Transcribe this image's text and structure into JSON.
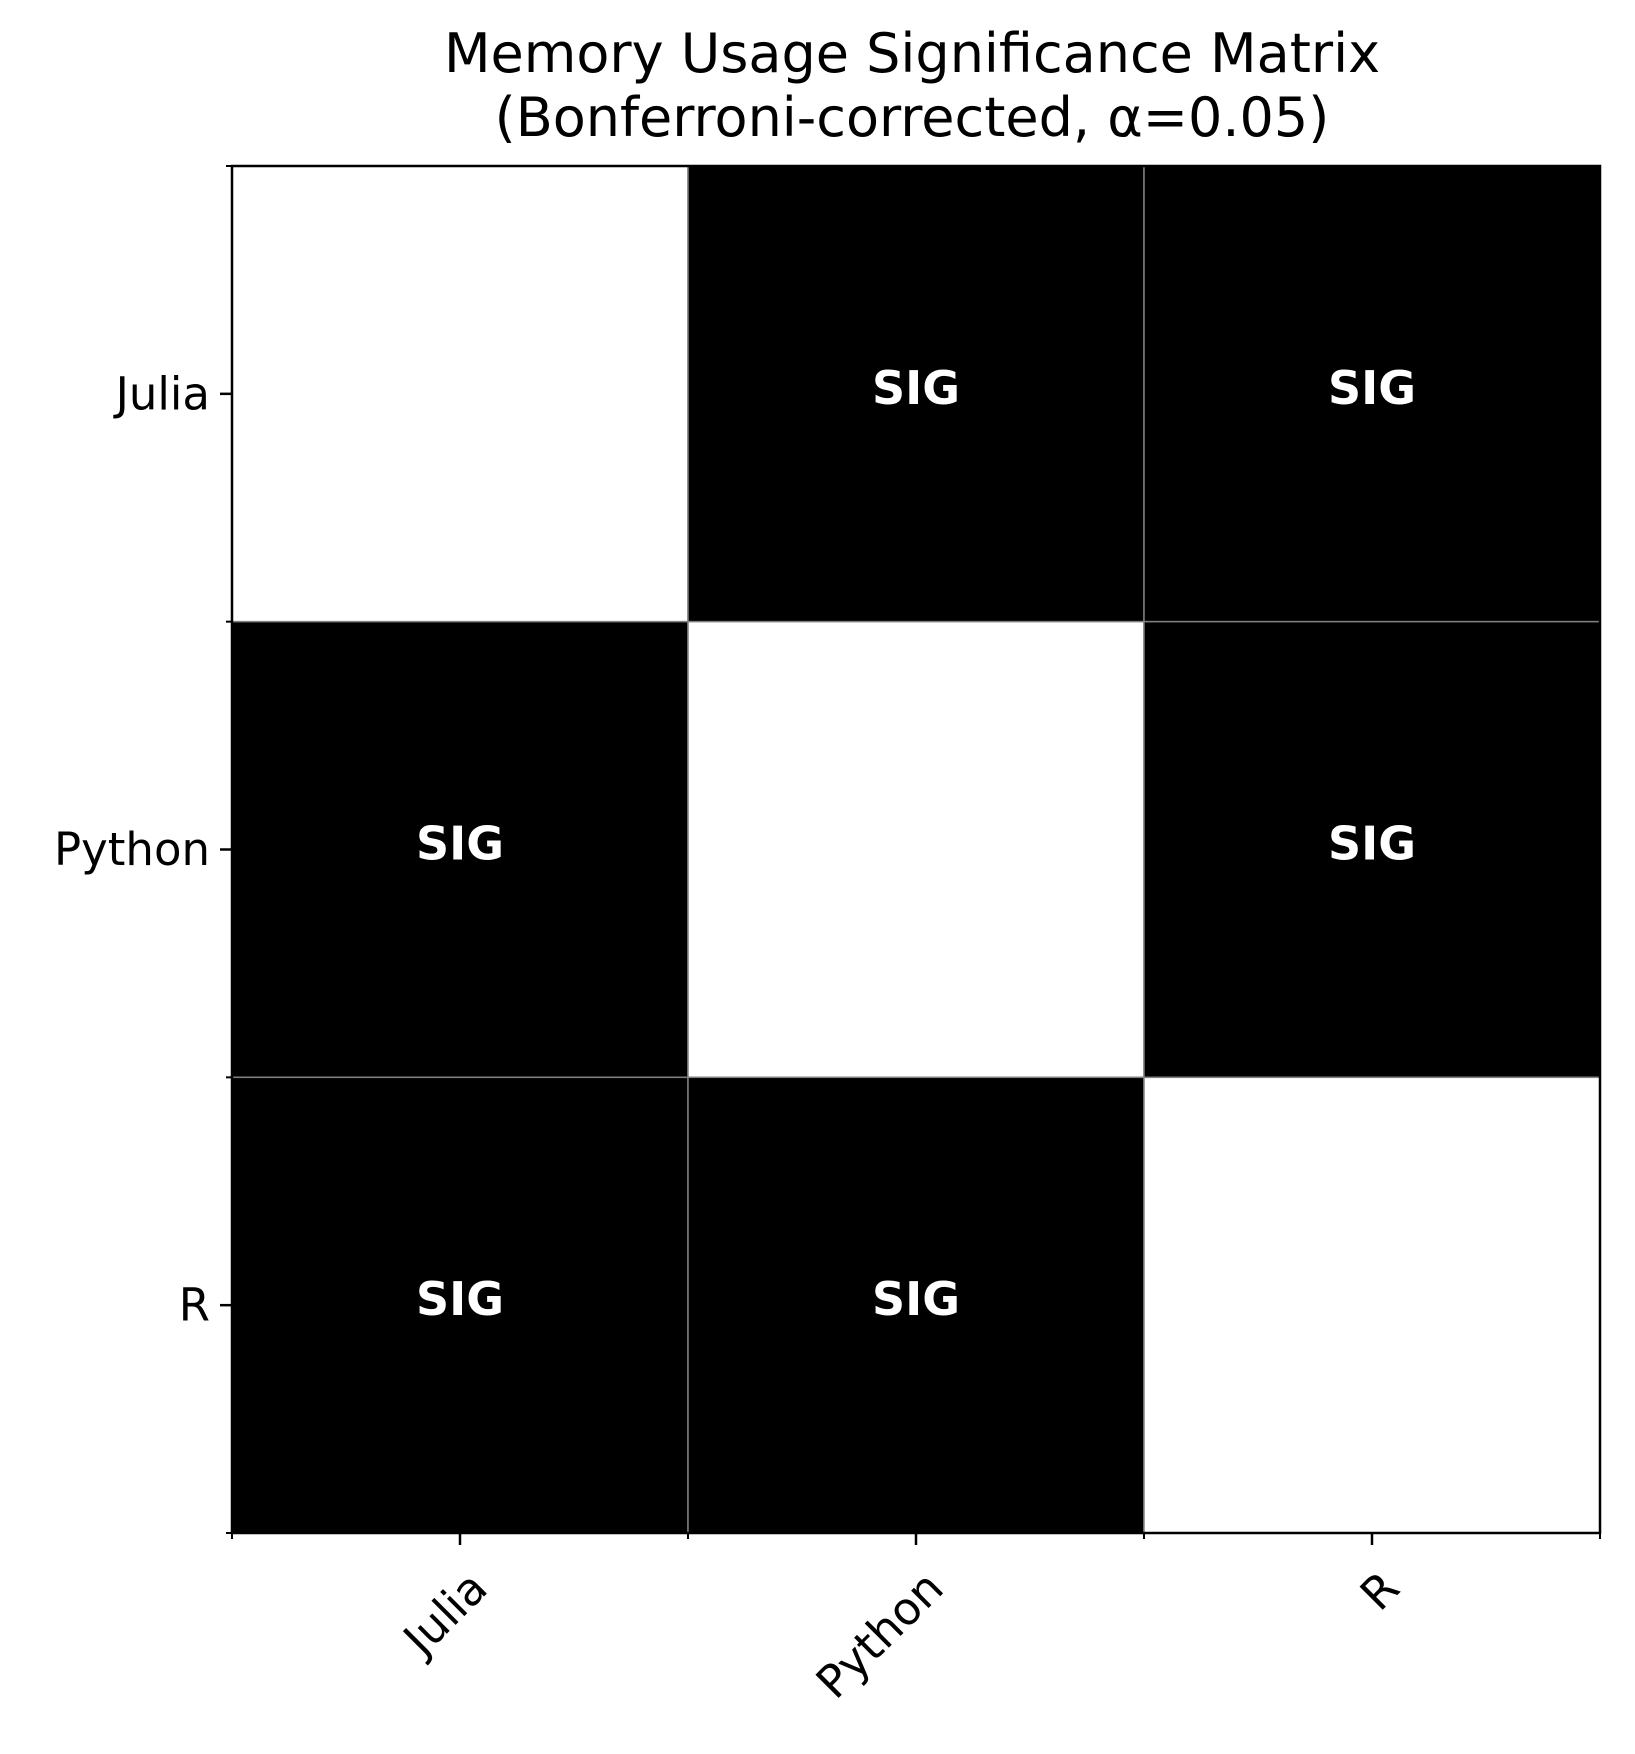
{
  "chart_data": {
    "type": "heatmap",
    "title": "Memory Usage Significance Matrix\n(Bonferroni-corrected, α=0.05)",
    "title_lines": [
      "Memory Usage Significance Matrix",
      "(Bonferroni-corrected, α=0.05)"
    ],
    "rows": [
      "Julia",
      "Python",
      "R"
    ],
    "columns": [
      "Julia",
      "Python",
      "R"
    ],
    "significant": [
      [
        0,
        1,
        1
      ],
      [
        1,
        0,
        1
      ],
      [
        1,
        1,
        0
      ]
    ],
    "cell_labels": [
      [
        "",
        "SIG",
        "SIG"
      ],
      [
        "SIG",
        "",
        "SIG"
      ],
      [
        "SIG",
        "SIG",
        ""
      ]
    ],
    "colors": {
      "significant": "#000000",
      "not_significant": "#ffffff",
      "significant_text": "#ffffff",
      "cell_edge": "#808080",
      "axis": "#000000"
    },
    "xlabel": "",
    "ylabel": "",
    "x_tick_rotation_deg": 45,
    "grid": false,
    "legend": "none"
  }
}
